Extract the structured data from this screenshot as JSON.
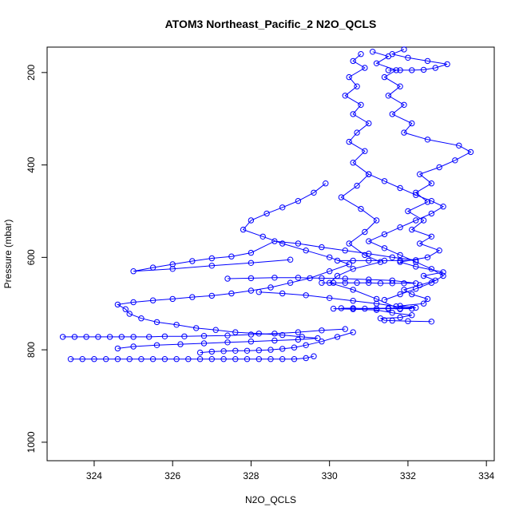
{
  "chart_data": {
    "type": "scatter",
    "title": "ATOM3 Northeast_Pacific_2 N2O_QCLS",
    "xlabel": "N2O_QCLS",
    "ylabel": "Pressure (mbar)",
    "xlim": [
      322.8,
      334.2
    ],
    "ylim": [
      1040,
      145
    ],
    "y_reversed": true,
    "x_ticks": [
      324,
      326,
      328,
      330,
      332,
      334
    ],
    "y_ticks": [
      200,
      400,
      600,
      800,
      1000
    ],
    "grid": false,
    "legend": "none",
    "marker": "open-circle",
    "connected": true,
    "color": "#0000ff",
    "series": [
      {
        "name": "",
        "points": [
          [
            332.6,
            739
          ],
          [
            332.0,
            738
          ],
          [
            331.6,
            737
          ],
          [
            331.4,
            736
          ],
          [
            331.3,
            732
          ],
          [
            331.8,
            730
          ],
          [
            332.1,
            725
          ],
          [
            331.6,
            720
          ],
          [
            331.2,
            714
          ],
          [
            330.6,
            712
          ],
          [
            330.1,
            711
          ],
          [
            331.5,
            710
          ],
          [
            332.2,
            709
          ],
          [
            331.8,
            705
          ],
          [
            332.4,
            700
          ],
          [
            332.5,
            690
          ],
          [
            332.1,
            680
          ],
          [
            331.9,
            670
          ],
          [
            332.3,
            660
          ],
          [
            332.7,
            650
          ],
          [
            332.4,
            640
          ],
          [
            332.9,
            632
          ],
          [
            332.2,
            620
          ],
          [
            331.8,
            610
          ],
          [
            332.5,
            600
          ],
          [
            332.8,
            585
          ],
          [
            332.3,
            570
          ],
          [
            332.6,
            555
          ],
          [
            332.1,
            540
          ],
          [
            332.4,
            520
          ],
          [
            332.0,
            500
          ],
          [
            332.5,
            480
          ],
          [
            332.2,
            460
          ],
          [
            332.6,
            440
          ],
          [
            332.3,
            420
          ],
          [
            332.8,
            405
          ],
          [
            333.2,
            390
          ],
          [
            333.6,
            372
          ],
          [
            333.3,
            358
          ],
          [
            332.5,
            345
          ],
          [
            331.9,
            330
          ],
          [
            332.1,
            310
          ],
          [
            331.6,
            290
          ],
          [
            331.9,
            270
          ],
          [
            331.5,
            250
          ],
          [
            331.8,
            230
          ],
          [
            331.4,
            210
          ],
          [
            331.7,
            195
          ],
          [
            331.2,
            180
          ],
          [
            331.5,
            165
          ],
          [
            331.1,
            155
          ]
        ]
      },
      {
        "name": "",
        "points": [
          [
            330.8,
            160
          ],
          [
            330.6,
            175
          ],
          [
            330.9,
            190
          ],
          [
            330.5,
            210
          ],
          [
            330.7,
            230
          ],
          [
            330.4,
            250
          ],
          [
            330.8,
            270
          ],
          [
            330.6,
            290
          ],
          [
            331.0,
            310
          ],
          [
            330.7,
            330
          ],
          [
            330.5,
            350
          ],
          [
            330.9,
            370
          ],
          [
            330.6,
            395
          ],
          [
            331.0,
            420
          ],
          [
            330.7,
            445
          ],
          [
            330.3,
            470
          ],
          [
            330.8,
            495
          ],
          [
            331.2,
            520
          ],
          [
            330.9,
            545
          ],
          [
            330.5,
            570
          ],
          [
            330.9,
            595
          ],
          [
            331.3,
            610
          ],
          [
            330.6,
            625
          ],
          [
            330.2,
            640
          ],
          [
            330.0,
            655
          ],
          [
            330.6,
            670
          ],
          [
            331.2,
            690
          ],
          [
            331.8,
            712
          ]
        ]
      },
      {
        "name": "",
        "points": [
          [
            329.9,
            440
          ],
          [
            329.6,
            460
          ],
          [
            329.2,
            478
          ],
          [
            328.8,
            492
          ],
          [
            328.4,
            505
          ],
          [
            328.0,
            520
          ],
          [
            327.8,
            540
          ],
          [
            328.3,
            555
          ],
          [
            328.8,
            570
          ],
          [
            329.4,
            585
          ],
          [
            330.0,
            600
          ],
          [
            330.5,
            615
          ],
          [
            330.0,
            630
          ],
          [
            329.5,
            645
          ],
          [
            329.0,
            655
          ],
          [
            328.5,
            665
          ],
          [
            328.0,
            672
          ],
          [
            327.5,
            678
          ],
          [
            327.0,
            683
          ],
          [
            326.5,
            686
          ],
          [
            326.0,
            690
          ],
          [
            325.5,
            693
          ],
          [
            325.0,
            697
          ],
          [
            324.6,
            702
          ],
          [
            324.8,
            712
          ],
          [
            324.9,
            722
          ],
          [
            325.2,
            732
          ],
          [
            325.6,
            740
          ],
          [
            326.1,
            746
          ],
          [
            326.6,
            753
          ],
          [
            327.1,
            757
          ],
          [
            327.6,
            762
          ],
          [
            328.2,
            765
          ],
          [
            328.8,
            768
          ],
          [
            329.3,
            772
          ],
          [
            329.7,
            775
          ],
          [
            329.2,
            778
          ],
          [
            328.6,
            780
          ],
          [
            328.0,
            782
          ],
          [
            327.4,
            784
          ],
          [
            326.8,
            786
          ],
          [
            326.2,
            788
          ],
          [
            325.6,
            790
          ],
          [
            325.0,
            793
          ],
          [
            324.6,
            797
          ]
        ]
      },
      {
        "name": "",
        "points": [
          [
            323.2,
            772
          ],
          [
            323.5,
            772
          ],
          [
            323.8,
            772
          ],
          [
            324.1,
            772
          ],
          [
            324.4,
            772
          ],
          [
            324.7,
            772
          ],
          [
            325.0,
            772
          ],
          [
            325.4,
            772
          ],
          [
            325.8,
            771
          ],
          [
            326.3,
            771
          ],
          [
            326.8,
            770
          ],
          [
            327.4,
            769
          ],
          [
            328.0,
            767
          ],
          [
            328.6,
            765
          ],
          [
            329.2,
            762
          ],
          [
            329.8,
            758
          ],
          [
            330.4,
            755
          ]
        ]
      },
      {
        "name": "",
        "points": [
          [
            323.4,
            820
          ],
          [
            323.7,
            820
          ],
          [
            324.0,
            820
          ],
          [
            324.3,
            820
          ],
          [
            324.6,
            820
          ],
          [
            324.9,
            820
          ],
          [
            325.2,
            820
          ],
          [
            325.5,
            820
          ],
          [
            325.8,
            820
          ],
          [
            326.1,
            820
          ],
          [
            326.4,
            820
          ],
          [
            326.7,
            820
          ],
          [
            327.0,
            820
          ],
          [
            327.3,
            820
          ],
          [
            327.6,
            820
          ],
          [
            327.9,
            820
          ],
          [
            328.2,
            820
          ],
          [
            328.5,
            820
          ],
          [
            328.8,
            820
          ],
          [
            329.1,
            820
          ],
          [
            329.4,
            818
          ],
          [
            329.6,
            814
          ]
        ]
      },
      {
        "name": "",
        "points": [
          [
            326.7,
            806
          ],
          [
            327.0,
            804
          ],
          [
            327.3,
            803
          ],
          [
            327.6,
            802
          ],
          [
            327.9,
            802
          ],
          [
            328.2,
            801
          ],
          [
            328.5,
            800
          ],
          [
            328.8,
            798
          ],
          [
            329.1,
            795
          ],
          [
            329.4,
            790
          ],
          [
            329.8,
            782
          ],
          [
            330.2,
            772
          ],
          [
            330.6,
            762
          ]
        ]
      },
      {
        "name": "",
        "points": [
          [
            329.8,
            655
          ],
          [
            330.1,
            655
          ],
          [
            330.4,
            655
          ],
          [
            330.7,
            655
          ],
          [
            331.0,
            655
          ],
          [
            331.3,
            656
          ],
          [
            331.6,
            656
          ],
          [
            331.9,
            656
          ],
          [
            332.2,
            656
          ],
          [
            331.6,
            650
          ],
          [
            331.0,
            648
          ],
          [
            330.4,
            646
          ],
          [
            329.8,
            645
          ],
          [
            329.2,
            644
          ],
          [
            328.6,
            644
          ],
          [
            328.0,
            645
          ],
          [
            327.4,
            646
          ]
        ]
      },
      {
        "name": "",
        "points": [
          [
            330.3,
            710
          ],
          [
            330.6,
            710
          ],
          [
            330.9,
            711
          ],
          [
            331.2,
            711
          ],
          [
            331.5,
            711
          ],
          [
            331.8,
            711
          ],
          [
            332.1,
            711
          ],
          [
            331.7,
            706
          ],
          [
            331.2,
            700
          ],
          [
            330.6,
            694
          ],
          [
            330.0,
            688
          ],
          [
            329.4,
            682
          ],
          [
            328.8,
            678
          ],
          [
            328.2,
            675
          ]
        ]
      },
      {
        "name": "",
        "points": [
          [
            330.2,
            607
          ],
          [
            330.6,
            607
          ],
          [
            331.0,
            607
          ],
          [
            331.4,
            607
          ],
          [
            331.8,
            607
          ],
          [
            332.2,
            606
          ],
          [
            331.6,
            600
          ],
          [
            331.0,
            592
          ],
          [
            330.4,
            585
          ],
          [
            329.8,
            578
          ],
          [
            329.2,
            570
          ],
          [
            328.6,
            565
          ],
          [
            328.0,
            590
          ],
          [
            327.5,
            598
          ],
          [
            327.0,
            602
          ],
          [
            326.5,
            608
          ],
          [
            326.0,
            615
          ],
          [
            325.5,
            622
          ],
          [
            325.0,
            630
          ],
          [
            326.0,
            625
          ],
          [
            327.0,
            618
          ],
          [
            328.0,
            612
          ],
          [
            329.0,
            605
          ]
        ]
      },
      {
        "name": "",
        "points": [
          [
            331.5,
            195
          ],
          [
            331.8,
            195
          ],
          [
            332.1,
            195
          ],
          [
            332.4,
            194
          ],
          [
            332.7,
            190
          ],
          [
            333.0,
            182
          ],
          [
            332.5,
            175
          ],
          [
            332.0,
            168
          ],
          [
            331.6,
            160
          ],
          [
            331.9,
            150
          ]
        ]
      },
      {
        "name": "",
        "points": [
          [
            331.0,
            420
          ],
          [
            331.4,
            435
          ],
          [
            331.8,
            450
          ],
          [
            332.2,
            465
          ],
          [
            332.6,
            478
          ],
          [
            332.9,
            490
          ],
          [
            332.6,
            505
          ],
          [
            332.2,
            520
          ],
          [
            331.8,
            535
          ],
          [
            331.4,
            550
          ],
          [
            331.0,
            565
          ],
          [
            331.4,
            580
          ],
          [
            331.8,
            595
          ],
          [
            332.2,
            610
          ],
          [
            332.6,
            625
          ],
          [
            332.9,
            640
          ],
          [
            332.6,
            655
          ],
          [
            332.2,
            668
          ],
          [
            331.8,
            680
          ],
          [
            331.4,
            692
          ]
        ]
      }
    ]
  }
}
